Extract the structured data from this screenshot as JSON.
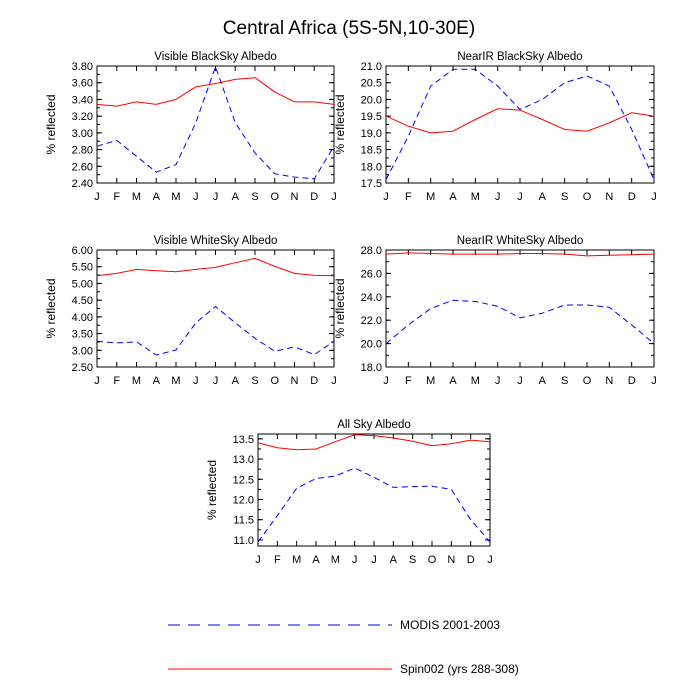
{
  "figure": {
    "title": "Central Africa (5S-5N,10-30E)"
  },
  "legend": {
    "items": [
      {
        "label": "MODIS 2001-2003",
        "color": "#0000ff",
        "dash": "dashed"
      },
      {
        "label": "Spin002 (yrs 288-308)",
        "color": "#ff0000",
        "dash": "solid"
      }
    ]
  },
  "chart_data": [
    {
      "type": "line",
      "title": "Visible BlackSky Albedo",
      "ylabel": "% reflected",
      "xlabel": "",
      "categories": [
        "J",
        "F",
        "M",
        "A",
        "M",
        "J",
        "J",
        "A",
        "S",
        "O",
        "N",
        "D",
        "J"
      ],
      "ylim": [
        2.4,
        3.8
      ],
      "yticks": [
        "2.40",
        "2.60",
        "2.80",
        "3.00",
        "3.20",
        "3.40",
        "3.60",
        "3.80"
      ],
      "series": [
        {
          "name": "MODIS 2001-2003",
          "color": "#0000ff",
          "dash": "dashed",
          "values": [
            2.84,
            2.91,
            2.72,
            2.53,
            2.62,
            3.12,
            3.79,
            3.12,
            2.76,
            2.51,
            2.47,
            2.45,
            2.84
          ]
        },
        {
          "name": "Spin002 (yrs 288-308)",
          "color": "#ff0000",
          "dash": "solid",
          "values": [
            3.34,
            3.32,
            3.37,
            3.34,
            3.4,
            3.55,
            3.59,
            3.64,
            3.66,
            3.49,
            3.37,
            3.37,
            3.34
          ]
        }
      ]
    },
    {
      "type": "line",
      "title": "NearIR BlackSky Albedo",
      "ylabel": "% reflected",
      "xlabel": "",
      "categories": [
        "J",
        "F",
        "M",
        "A",
        "M",
        "J",
        "J",
        "A",
        "S",
        "O",
        "N",
        "D",
        "J"
      ],
      "ylim": [
        17.5,
        21.0
      ],
      "yticks": [
        "17.5",
        "18.0",
        "18.5",
        "19.0",
        "19.5",
        "20.0",
        "20.5",
        "21.0"
      ],
      "series": [
        {
          "name": "MODIS 2001-2003",
          "color": "#0000ff",
          "dash": "dashed",
          "values": [
            17.6,
            18.9,
            20.4,
            20.9,
            20.9,
            20.4,
            19.7,
            20.0,
            20.5,
            20.7,
            20.4,
            19.1,
            17.6
          ]
        },
        {
          "name": "Spin002 (yrs 288-308)",
          "color": "#ff0000",
          "dash": "solid",
          "values": [
            19.5,
            19.2,
            19.0,
            19.05,
            19.4,
            19.72,
            19.68,
            19.4,
            19.1,
            19.05,
            19.3,
            19.6,
            19.5
          ]
        }
      ]
    },
    {
      "type": "line",
      "title": "Visible WhiteSky Albedo",
      "ylabel": "% reflected",
      "xlabel": "",
      "categories": [
        "J",
        "F",
        "M",
        "A",
        "M",
        "J",
        "J",
        "A",
        "S",
        "O",
        "N",
        "D",
        "J"
      ],
      "ylim": [
        2.5,
        6.0
      ],
      "yticks": [
        "2.50",
        "3.00",
        "3.50",
        "4.00",
        "4.50",
        "5.00",
        "5.50",
        "6.00"
      ],
      "series": [
        {
          "name": "MODIS 2001-2003",
          "color": "#0000ff",
          "dash": "dashed",
          "values": [
            3.27,
            3.22,
            3.25,
            2.86,
            3.01,
            3.82,
            4.31,
            3.82,
            3.36,
            2.97,
            3.1,
            2.87,
            3.27
          ]
        },
        {
          "name": "Spin002 (yrs 288-308)",
          "color": "#ff0000",
          "dash": "solid",
          "values": [
            5.23,
            5.3,
            5.42,
            5.38,
            5.35,
            5.42,
            5.48,
            5.62,
            5.75,
            5.51,
            5.3,
            5.24,
            5.23
          ]
        }
      ]
    },
    {
      "type": "line",
      "title": "NearIR WhiteSky Albedo",
      "ylabel": "% reflected",
      "xlabel": "",
      "categories": [
        "J",
        "F",
        "M",
        "A",
        "M",
        "J",
        "J",
        "A",
        "S",
        "O",
        "N",
        "D",
        "J"
      ],
      "ylim": [
        18.0,
        28.0
      ],
      "yticks": [
        "18.0",
        "20.0",
        "22.0",
        "24.0",
        "26.0",
        "28.0"
      ],
      "series": [
        {
          "name": "MODIS 2001-2003",
          "color": "#0000ff",
          "dash": "dashed",
          "values": [
            20.0,
            21.6,
            23.0,
            23.7,
            23.6,
            23.2,
            22.2,
            22.6,
            23.3,
            23.3,
            23.1,
            21.6,
            20.0
          ]
        },
        {
          "name": "Spin002 (yrs 288-308)",
          "color": "#ff0000",
          "dash": "solid",
          "values": [
            27.65,
            27.75,
            27.7,
            27.65,
            27.65,
            27.65,
            27.7,
            27.7,
            27.65,
            27.5,
            27.55,
            27.6,
            27.65
          ]
        }
      ]
    },
    {
      "type": "line",
      "title": "All Sky Albedo",
      "ylabel": "% reflected",
      "xlabel": "",
      "categories": [
        "J",
        "F",
        "M",
        "A",
        "M",
        "J",
        "J",
        "A",
        "S",
        "O",
        "N",
        "D",
        "J"
      ],
      "ylim": [
        10.85,
        13.62
      ],
      "yticks": [
        "11.0",
        "11.5",
        "12.0",
        "12.5",
        "13.0",
        "13.5"
      ],
      "series": [
        {
          "name": "MODIS 2001-2003",
          "color": "#0000ff",
          "dash": "dashed",
          "values": [
            10.95,
            11.6,
            12.28,
            12.52,
            12.58,
            12.78,
            12.55,
            12.3,
            12.32,
            12.33,
            12.25,
            11.5,
            10.95
          ]
        },
        {
          "name": "Spin002 (yrs 288-308)",
          "color": "#ff0000",
          "dash": "solid",
          "values": [
            13.4,
            13.28,
            13.23,
            13.25,
            13.43,
            13.6,
            13.58,
            13.52,
            13.44,
            13.33,
            13.38,
            13.47,
            13.43
          ]
        }
      ]
    }
  ]
}
